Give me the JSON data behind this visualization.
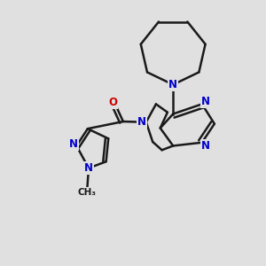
{
  "background_color": "#e0e0e0",
  "bond_color": "#1a1a1a",
  "N_color": "#0000cc",
  "O_color": "#cc0000",
  "line_width": 1.8,
  "figsize": [
    3.0,
    3.0
  ],
  "dpi": 100,
  "xlim": [
    0.0,
    1.0
  ],
  "ylim": [
    0.0,
    1.0
  ]
}
